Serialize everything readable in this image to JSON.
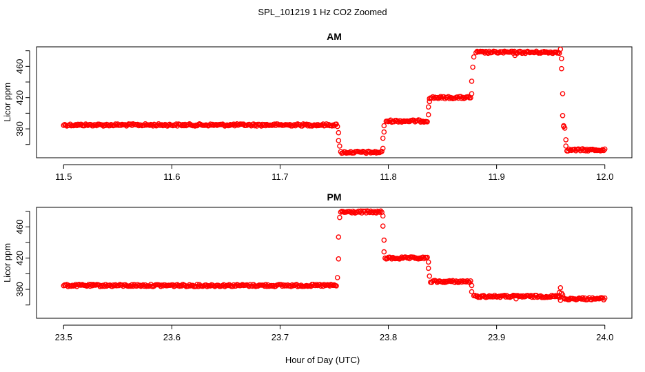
{
  "figure": {
    "title": "SPL_101219  1 Hz CO2 Zoomed",
    "xlabel": "Hour of Day (UTC)"
  },
  "chart_data": [
    {
      "type": "scatter",
      "title": "AM",
      "xlabel": "",
      "ylabel": "Licor ppm",
      "xlim": [
        11.475,
        12.025
      ],
      "ylim": [
        343,
        485
      ],
      "x_ticks": [
        11.5,
        11.6,
        11.7,
        11.8,
        11.9,
        12.0
      ],
      "x_tick_labels": [
        "11.5",
        "11.6",
        "11.7",
        "11.8",
        "11.9",
        "12.0"
      ],
      "y_ticks": [
        380,
        420,
        460
      ],
      "y_tick_labels": [
        "380",
        "420",
        "460"
      ],
      "marker": "open-circle",
      "color": "#ff0000",
      "grid": false,
      "segments": [
        {
          "x_start": 11.5,
          "x_end": 11.752,
          "y": 385
        },
        {
          "x_start": 11.756,
          "x_end": 11.794,
          "y": 350
        },
        {
          "x_start": 11.798,
          "x_end": 11.836,
          "y": 390
        },
        {
          "x_start": 11.838,
          "x_end": 11.876,
          "y": 420
        },
        {
          "x_start": 11.881,
          "x_end": 11.958,
          "y": 478
        },
        {
          "x_start": 11.965,
          "x_end": 12.0,
          "y": 353
        }
      ],
      "transitions": [
        {
          "x": 11.753,
          "y": 383
        },
        {
          "x": 11.754,
          "y": 375
        },
        {
          "x": 11.754,
          "y": 365
        },
        {
          "x": 11.755,
          "y": 358
        },
        {
          "x": 11.795,
          "y": 355
        },
        {
          "x": 11.795,
          "y": 368
        },
        {
          "x": 11.796,
          "y": 376
        },
        {
          "x": 11.796,
          "y": 384
        },
        {
          "x": 11.837,
          "y": 398
        },
        {
          "x": 11.837,
          "y": 408
        },
        {
          "x": 11.838,
          "y": 415
        },
        {
          "x": 11.877,
          "y": 425
        },
        {
          "x": 11.877,
          "y": 441
        },
        {
          "x": 11.878,
          "y": 459
        },
        {
          "x": 11.879,
          "y": 472
        },
        {
          "x": 11.917,
          "y": 474
        },
        {
          "x": 11.959,
          "y": 482
        },
        {
          "x": 11.96,
          "y": 470
        },
        {
          "x": 11.96,
          "y": 457
        },
        {
          "x": 11.961,
          "y": 425
        },
        {
          "x": 11.961,
          "y": 397
        },
        {
          "x": 11.962,
          "y": 384
        },
        {
          "x": 11.962,
          "y": 383
        },
        {
          "x": 11.963,
          "y": 381
        },
        {
          "x": 11.964,
          "y": 366
        },
        {
          "x": 11.964,
          "y": 358
        }
      ]
    },
    {
      "type": "scatter",
      "title": "PM",
      "xlabel": "",
      "ylabel": "Licor ppm",
      "xlim": [
        23.475,
        24.025
      ],
      "ylim": [
        343,
        485
      ],
      "x_ticks": [
        23.5,
        23.6,
        23.7,
        23.8,
        23.9,
        24.0
      ],
      "x_tick_labels": [
        "23.5",
        "23.6",
        "23.7",
        "23.8",
        "23.9",
        "24.0"
      ],
      "y_ticks": [
        380,
        420,
        460
      ],
      "y_tick_labels": [
        "380",
        "420",
        "460"
      ],
      "marker": "open-circle",
      "color": "#ff0000",
      "grid": false,
      "segments": [
        {
          "x_start": 23.5,
          "x_end": 23.752,
          "y": 385
        },
        {
          "x_start": 23.756,
          "x_end": 23.794,
          "y": 479
        },
        {
          "x_start": 23.797,
          "x_end": 23.836,
          "y": 420
        },
        {
          "x_start": 23.839,
          "x_end": 23.876,
          "y": 390
        },
        {
          "x_start": 23.879,
          "x_end": 23.958,
          "y": 371
        },
        {
          "x_start": 23.962,
          "x_end": 24.0,
          "y": 368
        }
      ],
      "transitions": [
        {
          "x": 23.753,
          "y": 395
        },
        {
          "x": 23.754,
          "y": 419
        },
        {
          "x": 23.754,
          "y": 447
        },
        {
          "x": 23.755,
          "y": 472
        },
        {
          "x": 23.795,
          "y": 474
        },
        {
          "x": 23.795,
          "y": 461
        },
        {
          "x": 23.796,
          "y": 443
        },
        {
          "x": 23.796,
          "y": 428
        },
        {
          "x": 23.837,
          "y": 415
        },
        {
          "x": 23.837,
          "y": 407
        },
        {
          "x": 23.838,
          "y": 397
        },
        {
          "x": 23.877,
          "y": 385
        },
        {
          "x": 23.877,
          "y": 377
        },
        {
          "x": 23.918,
          "y": 368
        },
        {
          "x": 23.958,
          "y": 372
        },
        {
          "x": 23.958,
          "y": 376
        },
        {
          "x": 23.959,
          "y": 382
        },
        {
          "x": 23.959,
          "y": 366
        },
        {
          "x": 23.96,
          "y": 375
        },
        {
          "x": 23.961,
          "y": 373
        }
      ]
    }
  ]
}
